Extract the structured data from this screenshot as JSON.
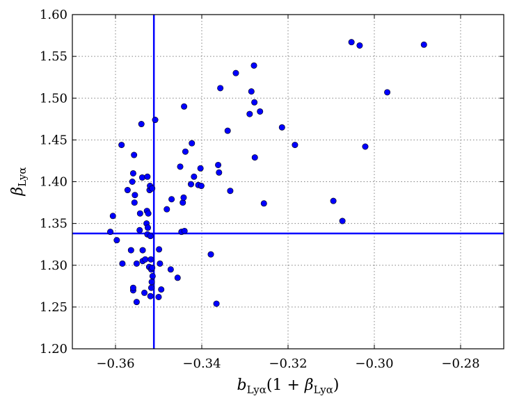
{
  "chart_data": {
    "type": "scatter",
    "xlabel": {
      "main": "b",
      "sub": "Lyα",
      "paren_open": "(1 + ",
      "greek": "β",
      "greek_sub": "Lyα",
      "paren_close": ")"
    },
    "ylabel": {
      "main": "β",
      "sub": "Lyα"
    },
    "xlim": [
      -0.37,
      -0.27
    ],
    "ylim": [
      1.2,
      1.6
    ],
    "xticks": [
      -0.36,
      -0.34,
      -0.32,
      -0.3,
      -0.28
    ],
    "xtick_labels": [
      "−0.36",
      "−0.34",
      "−0.32",
      "−0.30",
      "−0.28"
    ],
    "yticks": [
      1.2,
      1.25,
      1.3,
      1.35,
      1.4,
      1.45,
      1.5,
      1.55,
      1.6
    ],
    "ytick_labels": [
      "1.20",
      "1.25",
      "1.30",
      "1.35",
      "1.40",
      "1.45",
      "1.50",
      "1.55",
      "1.60"
    ],
    "grid": true,
    "reference_lines": {
      "x": -0.3511,
      "y": 1.338,
      "color": "#0000ff"
    },
    "marker_color": "#0000ff",
    "points": [
      [
        -0.3612,
        1.34
      ],
      [
        -0.3606,
        1.359
      ],
      [
        -0.3597,
        1.33
      ],
      [
        -0.3586,
        1.444
      ],
      [
        -0.3584,
        1.302
      ],
      [
        -0.3572,
        1.39
      ],
      [
        -0.3564,
        1.318
      ],
      [
        -0.3561,
        1.4
      ],
      [
        -0.3559,
        1.41
      ],
      [
        -0.3559,
        1.27
      ],
      [
        -0.3559,
        1.273
      ],
      [
        -0.3557,
        1.432
      ],
      [
        -0.3556,
        1.375
      ],
      [
        -0.3555,
        1.384
      ],
      [
        -0.3551,
        1.256
      ],
      [
        -0.3551,
        1.302
      ],
      [
        -0.3544,
        1.342
      ],
      [
        -0.3543,
        1.362
      ],
      [
        -0.354,
        1.469
      ],
      [
        -0.3538,
        1.405
      ],
      [
        -0.3537,
        1.318
      ],
      [
        -0.3537,
        1.305
      ],
      [
        -0.3533,
        1.267
      ],
      [
        -0.3531,
        1.307
      ],
      [
        -0.3528,
        1.35
      ],
      [
        -0.3527,
        1.365
      ],
      [
        -0.3526,
        1.337
      ],
      [
        -0.3526,
        1.406
      ],
      [
        -0.3525,
        1.345
      ],
      [
        -0.3524,
        1.362
      ],
      [
        -0.3522,
        1.298
      ],
      [
        -0.3521,
        1.39
      ],
      [
        -0.352,
        1.395
      ],
      [
        -0.3519,
        1.335
      ],
      [
        -0.3519,
        1.263
      ],
      [
        -0.3518,
        1.307
      ],
      [
        -0.3517,
        1.295
      ],
      [
        -0.3517,
        1.273
      ],
      [
        -0.3516,
        1.28
      ],
      [
        -0.3515,
        1.392
      ],
      [
        -0.3515,
        1.297
      ],
      [
        -0.3514,
        1.287
      ],
      [
        -0.3508,
        1.474
      ],
      [
        -0.35,
        1.262
      ],
      [
        -0.3499,
        1.319
      ],
      [
        -0.3497,
        1.302
      ],
      [
        -0.3494,
        1.271
      ],
      [
        -0.3481,
        1.367
      ],
      [
        -0.3472,
        1.295
      ],
      [
        -0.347,
        1.379
      ],
      [
        -0.3456,
        1.285
      ],
      [
        -0.345,
        1.418
      ],
      [
        -0.3447,
        1.34
      ],
      [
        -0.3444,
        1.375
      ],
      [
        -0.3442,
        1.381
      ],
      [
        -0.3441,
        1.49
      ],
      [
        -0.344,
        1.341
      ],
      [
        -0.3438,
        1.436
      ],
      [
        -0.3425,
        1.397
      ],
      [
        -0.3423,
        1.446
      ],
      [
        -0.3418,
        1.406
      ],
      [
        -0.3408,
        1.396
      ],
      [
        -0.3403,
        1.416
      ],
      [
        -0.3401,
        1.395
      ],
      [
        -0.3379,
        1.313
      ],
      [
        -0.3366,
        1.254
      ],
      [
        -0.3362,
        1.42
      ],
      [
        -0.336,
        1.411
      ],
      [
        -0.3357,
        1.512
      ],
      [
        -0.334,
        1.461
      ],
      [
        -0.3334,
        1.389
      ],
      [
        -0.3321,
        1.53
      ],
      [
        -0.3289,
        1.481
      ],
      [
        -0.3285,
        1.508
      ],
      [
        -0.3279,
        1.539
      ],
      [
        -0.3278,
        1.495
      ],
      [
        -0.3277,
        1.429
      ],
      [
        -0.3265,
        1.484
      ],
      [
        -0.3256,
        1.374
      ],
      [
        -0.3214,
        1.465
      ],
      [
        -0.3184,
        1.444
      ],
      [
        -0.3095,
        1.377
      ],
      [
        -0.3074,
        1.353
      ],
      [
        -0.3053,
        1.567
      ],
      [
        -0.3034,
        1.563
      ],
      [
        -0.3021,
        1.442
      ],
      [
        -0.297,
        1.507
      ],
      [
        -0.2885,
        1.564
      ]
    ]
  }
}
